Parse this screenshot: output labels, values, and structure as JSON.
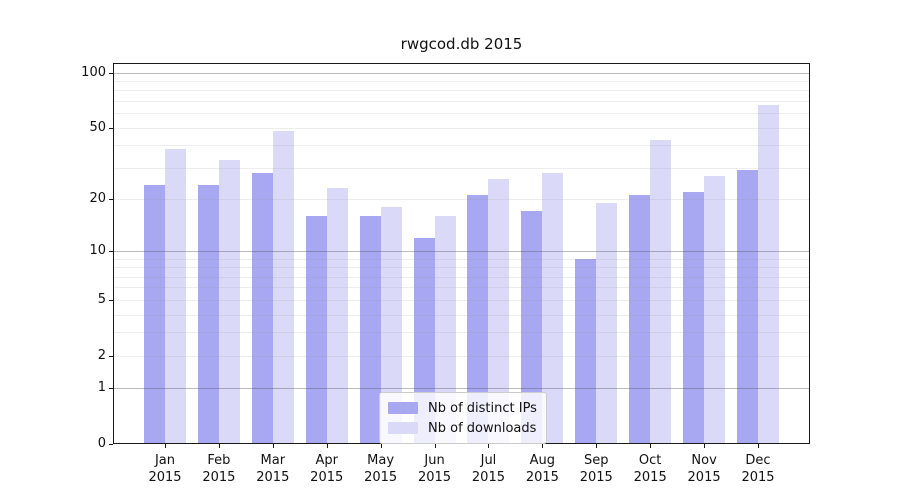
{
  "title": "rwgcod.db 2015",
  "chart_data": {
    "type": "bar",
    "title": "rwgcod.db 2015",
    "categories": [
      {
        "month": "Jan",
        "year": "2015"
      },
      {
        "month": "Feb",
        "year": "2015"
      },
      {
        "month": "Mar",
        "year": "2015"
      },
      {
        "month": "Apr",
        "year": "2015"
      },
      {
        "month": "May",
        "year": "2015"
      },
      {
        "month": "Jun",
        "year": "2015"
      },
      {
        "month": "Jul",
        "year": "2015"
      },
      {
        "month": "Aug",
        "year": "2015"
      },
      {
        "month": "Sep",
        "year": "2015"
      },
      {
        "month": "Oct",
        "year": "2015"
      },
      {
        "month": "Nov",
        "year": "2015"
      },
      {
        "month": "Dec",
        "year": "2015"
      }
    ],
    "series": [
      {
        "name": "Nb of distinct IPs",
        "color": "#a8a8f2",
        "values": [
          24,
          24,
          28,
          16,
          16,
          12,
          21,
          17,
          9,
          21,
          22,
          29
        ]
      },
      {
        "name": "Nb of downloads",
        "color": "#dadaf8",
        "values": [
          38,
          33,
          48,
          23,
          18,
          16,
          26,
          28,
          19,
          43,
          27,
          67
        ]
      }
    ],
    "xlabel": "",
    "ylabel": "",
    "yticks": [
      0,
      1,
      2,
      5,
      10,
      20,
      50,
      100
    ],
    "minor_gridlines": [
      2,
      3,
      4,
      5,
      6,
      7,
      8,
      9,
      20,
      30,
      40,
      50,
      60,
      70,
      80,
      90
    ],
    "major_gridlines": [
      1,
      10,
      100
    ],
    "ylim": [
      0,
      113
    ],
    "scale": "log1p",
    "grid": "horizontal",
    "legend_position": "lower-center-inside"
  }
}
